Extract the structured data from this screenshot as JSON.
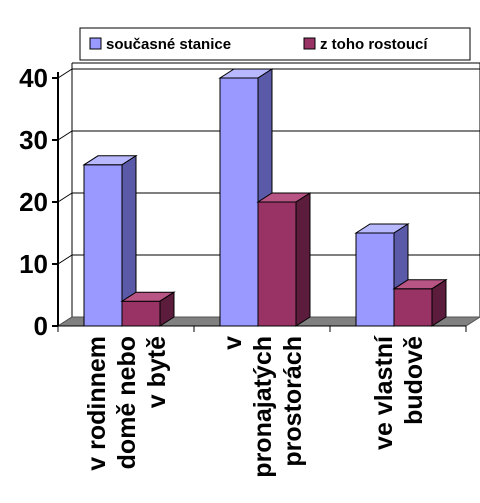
{
  "chart_data": {
    "type": "bar",
    "title": "",
    "xlabel": "",
    "ylabel": "",
    "categories": [
      [
        "v rodinnem",
        "domě nebo",
        "v bytě"
      ],
      [
        "v",
        "pronajatých",
        "prostorách"
      ],
      [
        "ve vlastní",
        "budově"
      ]
    ],
    "series": [
      {
        "name": "současné stanice",
        "values": [
          26,
          40,
          15
        ],
        "color": "#9999ff",
        "side_color": "#5a5aa8",
        "top_color": "#b8b8ff"
      },
      {
        "name": "z toho rostoucí",
        "values": [
          4,
          20,
          6
        ],
        "color": "#993366",
        "side_color": "#5c1d3c",
        "top_color": "#b85585"
      }
    ],
    "ylim": [
      0,
      40
    ],
    "yticks": [
      "0",
      "10",
      "20",
      "30",
      "40"
    ],
    "grid": true,
    "legend_position": "top",
    "style": "3d-column",
    "colors": {
      "grid": "#000000",
      "floor": "#808080",
      "bar_outline": "#000000"
    }
  }
}
